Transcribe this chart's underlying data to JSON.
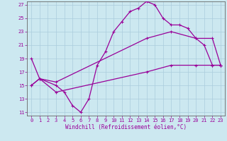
{
  "xlabel": "Windchill (Refroidissement éolien,°C)",
  "bg_color": "#cce8f0",
  "line_color": "#990099",
  "grid_color": "#aaccdd",
  "xlim": [
    -0.5,
    23.5
  ],
  "ylim": [
    10.5,
    27.5
  ],
  "yticks": [
    11,
    13,
    15,
    17,
    19,
    21,
    23,
    25,
    27
  ],
  "xticks": [
    0,
    1,
    2,
    3,
    4,
    5,
    6,
    7,
    8,
    9,
    10,
    11,
    12,
    13,
    14,
    15,
    16,
    17,
    18,
    19,
    20,
    21,
    22,
    23
  ],
  "line1_x": [
    0,
    1,
    3,
    4,
    5,
    6,
    7,
    8,
    9,
    10,
    11,
    12,
    13,
    14,
    15,
    16,
    17,
    18,
    19,
    20,
    21,
    22,
    23
  ],
  "line1_y": [
    19,
    16,
    15,
    14,
    12,
    11,
    13,
    18,
    20,
    23,
    24.5,
    26,
    26.5,
    27.5,
    27,
    25,
    24,
    24,
    23.5,
    22,
    21,
    18,
    18
  ],
  "line2_x": [
    0,
    1,
    3,
    14,
    17,
    20,
    22,
    23
  ],
  "line2_y": [
    15,
    16,
    15.5,
    22,
    23,
    22,
    22,
    18
  ],
  "line3_x": [
    0,
    1,
    3,
    14,
    17,
    20,
    22,
    23
  ],
  "line3_y": [
    15,
    16,
    14,
    17,
    18,
    18,
    18,
    18
  ]
}
